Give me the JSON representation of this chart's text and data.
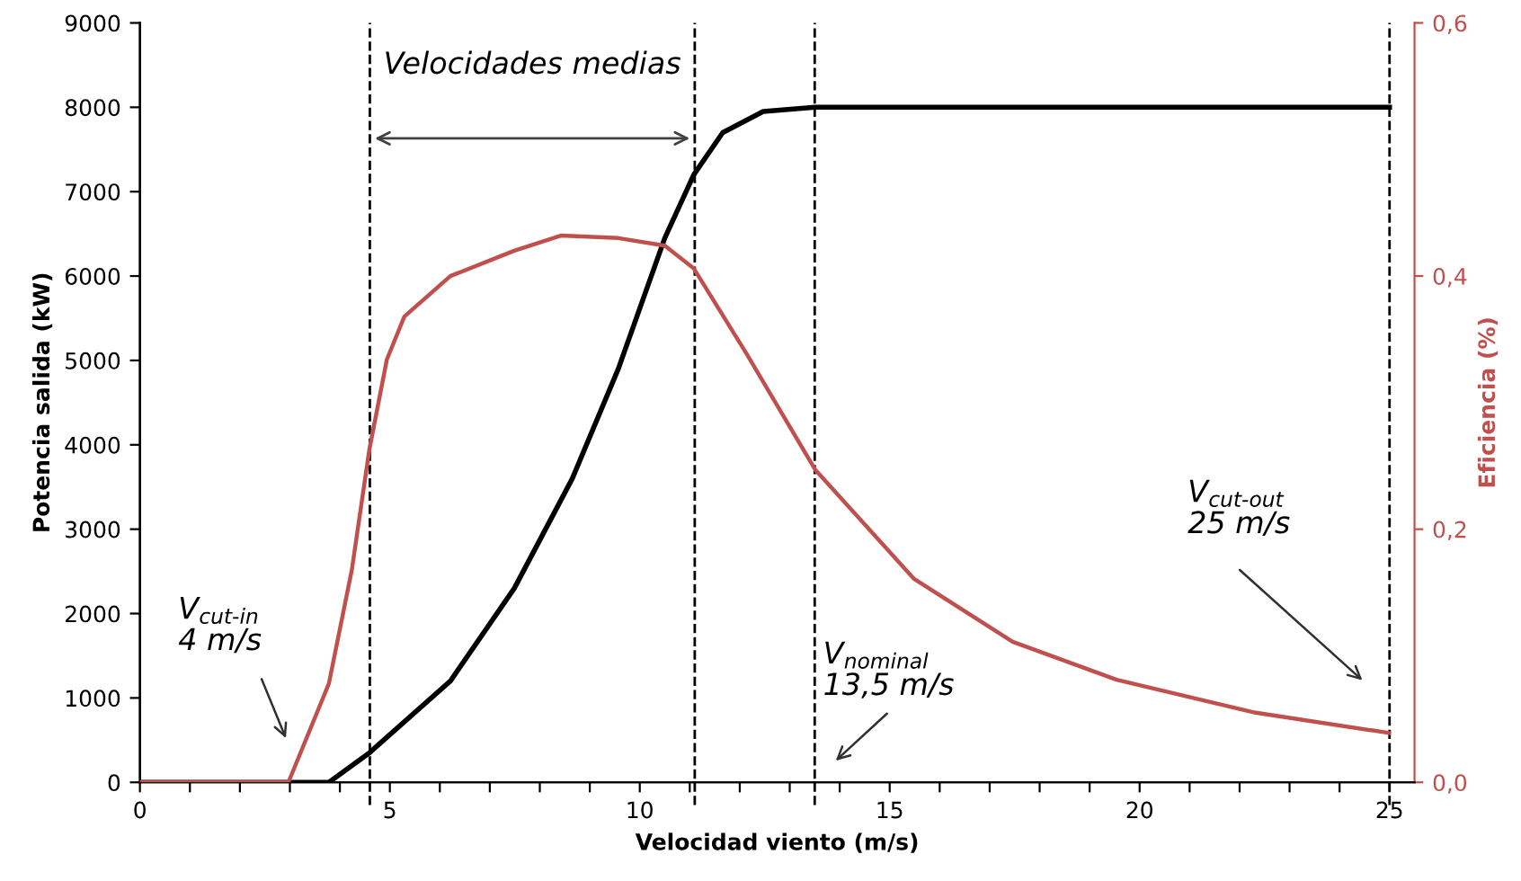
{
  "chart_data": {
    "type": "line",
    "xlabel": "Velocidad viento (m/s)",
    "ylabel": "Potencia salida (kW)",
    "y2label": "Eficiencia (%)",
    "xlim": [
      0,
      25.5
    ],
    "xticks": [
      0,
      {
        "value": 1,
        "label": null
      },
      {
        "value": 2,
        "label": null
      },
      {
        "value": 3,
        "label": null
      },
      {
        "value": 4,
        "label": null
      },
      5,
      {
        "value": 6,
        "label": null
      },
      {
        "value": 7,
        "label": null
      },
      {
        "value": 8,
        "label": null
      },
      {
        "value": 9,
        "label": null
      },
      10,
      {
        "value": 11,
        "label": null
      },
      {
        "value": 12,
        "label": null
      },
      {
        "value": 13,
        "label": null
      },
      {
        "value": 14,
        "label": null
      },
      15,
      {
        "value": 16,
        "label": null
      },
      {
        "value": 17,
        "label": null
      },
      {
        "value": 18,
        "label": null
      },
      {
        "value": 19,
        "label": null
      },
      20,
      {
        "value": 21,
        "label": null
      },
      {
        "value": 22,
        "label": null
      },
      {
        "value": 23,
        "label": null
      },
      {
        "value": 24,
        "label": null
      },
      25
    ],
    "ylim": [
      0,
      9000
    ],
    "yticks": [
      0,
      1000,
      2000,
      3000,
      4000,
      5000,
      6000,
      7000,
      8000,
      9000
    ],
    "y2lim": [
      0,
      0.6
    ],
    "y2ticks": [
      {
        "value": 0,
        "label": "0,0"
      },
      {
        "value": 0.2,
        "label": "0,2"
      },
      {
        "value": 0.4,
        "label": "0,4"
      },
      {
        "value": 0.6,
        "label": "0,6"
      }
    ],
    "grid": false,
    "marker": "none",
    "line_style": "solid",
    "series": [
      {
        "color": "#000000",
        "x": [
          0,
          2.97,
          3.78,
          4.59,
          6.21,
          7.49,
          8.65,
          9.57,
          10.5,
          11.08,
          11.66,
          12.47,
          13.51,
          25
        ],
        "values": [
          0,
          0,
          0,
          350,
          1200,
          2300,
          3600,
          4900,
          6450,
          7200,
          7700,
          7950,
          8000,
          8000
        ]
      },
      {
        "color": "#c0504d",
        "axis": "y2",
        "x": [
          0,
          2.97,
          3.78,
          4.24,
          4.59,
          4.94,
          5.29,
          6.21,
          7.49,
          8.42,
          9.57,
          10.5,
          11.08,
          12.13,
          13.51,
          15.48,
          17.46,
          19.54,
          22.32,
          24.99
        ],
        "values": [
          0,
          0,
          0.078,
          0.168,
          0.263,
          0.334,
          0.368,
          0.4,
          0.42,
          0.432,
          0.43,
          0.424,
          0.406,
          0.339,
          0.247,
          0.161,
          0.111,
          0.081,
          0.055,
          0.039
        ]
      }
    ],
    "ref_lines": [
      {
        "axis": "x",
        "value": 4.6,
        "color": "#000000",
        "line_style": "dashed"
      },
      {
        "axis": "x",
        "value": 11.1,
        "color": "#000000",
        "line_style": "dashed"
      },
      {
        "axis": "x",
        "value": 13.5,
        "color": "#000000",
        "line_style": "dashed"
      },
      {
        "axis": "x",
        "value": 25,
        "color": "#000000",
        "line_style": "dashed"
      }
    ],
    "annotations": [
      "Velocidades medias",
      "V$_{cut‐in}$\n4 m/s",
      "V$_{nominal}$\n13,5 m/s",
      "V$_{cut‐out}$\n25 m/s"
    ]
  }
}
